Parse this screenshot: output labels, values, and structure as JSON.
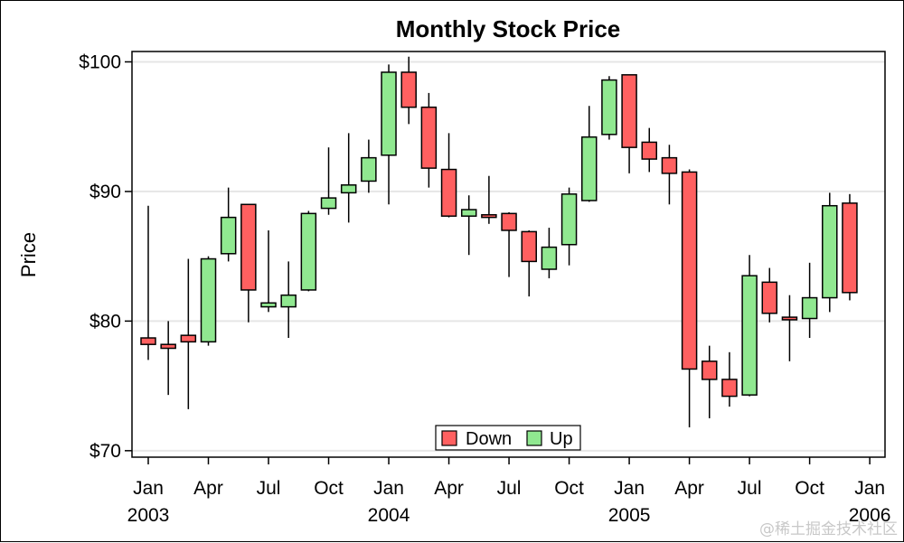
{
  "chart_data": {
    "type": "candlestick",
    "title": "Monthly Stock Price",
    "xlabel": "",
    "ylabel": "Price",
    "ylim": [
      69.5,
      100.8
    ],
    "y_ticks": [
      {
        "value": 70,
        "label": "$70"
      },
      {
        "value": 80,
        "label": "$80"
      },
      {
        "value": 90,
        "label": "$90"
      },
      {
        "value": 100,
        "label": "$100"
      }
    ],
    "x_ticks": [
      {
        "month": "2003-01",
        "label": "Jan",
        "year": "2003"
      },
      {
        "month": "2003-04",
        "label": "Apr",
        "year": ""
      },
      {
        "month": "2003-07",
        "label": "Jul",
        "year": ""
      },
      {
        "month": "2003-10",
        "label": "Oct",
        "year": ""
      },
      {
        "month": "2004-01",
        "label": "Jan",
        "year": "2004"
      },
      {
        "month": "2004-04",
        "label": "Apr",
        "year": ""
      },
      {
        "month": "2004-07",
        "label": "Jul",
        "year": ""
      },
      {
        "month": "2004-10",
        "label": "Oct",
        "year": ""
      },
      {
        "month": "2005-01",
        "label": "Jan",
        "year": "2005"
      },
      {
        "month": "2005-04",
        "label": "Apr",
        "year": ""
      },
      {
        "month": "2005-07",
        "label": "Jul",
        "year": ""
      },
      {
        "month": "2005-10",
        "label": "Oct",
        "year": ""
      },
      {
        "month": "2006-01",
        "label": "Jan",
        "year": "2006"
      }
    ],
    "grid": true,
    "legend": {
      "position": "bottom-center",
      "entries": [
        {
          "name": "Down",
          "color": "#ff6060"
        },
        {
          "name": "Up",
          "color": "#90e890"
        }
      ]
    },
    "colors": {
      "down": "#ff6060",
      "up": "#90e890",
      "grid": "#e6e6e6"
    },
    "candles": [
      {
        "date": "2003-01",
        "open": 78.7,
        "close": 78.2,
        "high": 88.9,
        "low": 77.0
      },
      {
        "date": "2003-02",
        "open": 78.2,
        "close": 77.9,
        "high": 80.0,
        "low": 74.3
      },
      {
        "date": "2003-03",
        "open": 78.9,
        "close": 78.4,
        "high": 84.8,
        "low": 73.2
      },
      {
        "date": "2003-04",
        "open": 78.4,
        "close": 84.8,
        "high": 85.0,
        "low": 78.1
      },
      {
        "date": "2003-05",
        "open": 85.2,
        "close": 88.0,
        "high": 90.3,
        "low": 84.6
      },
      {
        "date": "2003-06",
        "open": 89.0,
        "close": 82.4,
        "high": 89.0,
        "low": 79.9
      },
      {
        "date": "2003-07",
        "open": 81.1,
        "close": 81.4,
        "high": 87.0,
        "low": 80.7
      },
      {
        "date": "2003-08",
        "open": 81.1,
        "close": 82.0,
        "high": 84.6,
        "low": 78.7
      },
      {
        "date": "2003-09",
        "open": 82.4,
        "close": 88.3,
        "high": 88.5,
        "low": 82.3
      },
      {
        "date": "2003-10",
        "open": 88.7,
        "close": 89.5,
        "high": 93.4,
        "low": 88.2
      },
      {
        "date": "2003-11",
        "open": 89.9,
        "close": 90.5,
        "high": 94.5,
        "low": 87.6
      },
      {
        "date": "2003-12",
        "open": 90.8,
        "close": 92.6,
        "high": 94.0,
        "low": 89.9
      },
      {
        "date": "2004-01",
        "open": 92.8,
        "close": 99.2,
        "high": 99.8,
        "low": 89.0
      },
      {
        "date": "2004-02",
        "open": 99.2,
        "close": 96.5,
        "high": 100.4,
        "low": 95.2
      },
      {
        "date": "2004-03",
        "open": 96.5,
        "close": 91.8,
        "high": 97.6,
        "low": 90.3
      },
      {
        "date": "2004-04",
        "open": 91.7,
        "close": 88.1,
        "high": 94.5,
        "low": 88.0
      },
      {
        "date": "2004-05",
        "open": 88.1,
        "close": 88.6,
        "high": 89.7,
        "low": 85.1
      },
      {
        "date": "2004-06",
        "open": 88.2,
        "close": 88.0,
        "high": 91.2,
        "low": 87.5
      },
      {
        "date": "2004-07",
        "open": 88.3,
        "close": 87.0,
        "high": 88.4,
        "low": 83.4
      },
      {
        "date": "2004-08",
        "open": 86.9,
        "close": 84.6,
        "high": 87.0,
        "low": 81.9
      },
      {
        "date": "2004-09",
        "open": 84.0,
        "close": 85.7,
        "high": 87.2,
        "low": 83.3
      },
      {
        "date": "2004-10",
        "open": 85.9,
        "close": 89.8,
        "high": 90.3,
        "low": 84.3
      },
      {
        "date": "2004-11",
        "open": 89.3,
        "close": 94.2,
        "high": 96.6,
        "low": 89.2
      },
      {
        "date": "2004-12",
        "open": 94.4,
        "close": 98.6,
        "high": 98.9,
        "low": 94.0
      },
      {
        "date": "2005-01",
        "open": 99.0,
        "close": 93.4,
        "high": 99.0,
        "low": 91.4
      },
      {
        "date": "2005-02",
        "open": 93.8,
        "close": 92.5,
        "high": 94.9,
        "low": 91.5
      },
      {
        "date": "2005-03",
        "open": 92.6,
        "close": 91.4,
        "high": 93.6,
        "low": 89.0
      },
      {
        "date": "2005-04",
        "open": 91.5,
        "close": 76.3,
        "high": 91.7,
        "low": 71.8
      },
      {
        "date": "2005-05",
        "open": 76.9,
        "close": 75.5,
        "high": 78.1,
        "low": 72.5
      },
      {
        "date": "2005-06",
        "open": 75.5,
        "close": 74.2,
        "high": 77.6,
        "low": 73.4
      },
      {
        "date": "2005-07",
        "open": 74.3,
        "close": 83.5,
        "high": 85.1,
        "low": 74.2
      },
      {
        "date": "2005-08",
        "open": 83.0,
        "close": 80.6,
        "high": 84.1,
        "low": 79.9
      },
      {
        "date": "2005-09",
        "open": 80.3,
        "close": 80.1,
        "high": 82.0,
        "low": 76.9
      },
      {
        "date": "2005-10",
        "open": 80.2,
        "close": 81.8,
        "high": 84.5,
        "low": 78.7
      },
      {
        "date": "2005-11",
        "open": 81.8,
        "close": 88.9,
        "high": 89.9,
        "low": 80.7
      },
      {
        "date": "2005-12",
        "open": 89.1,
        "close": 82.2,
        "high": 89.8,
        "low": 81.6
      }
    ]
  },
  "watermark": "@稀土掘金技术社区"
}
